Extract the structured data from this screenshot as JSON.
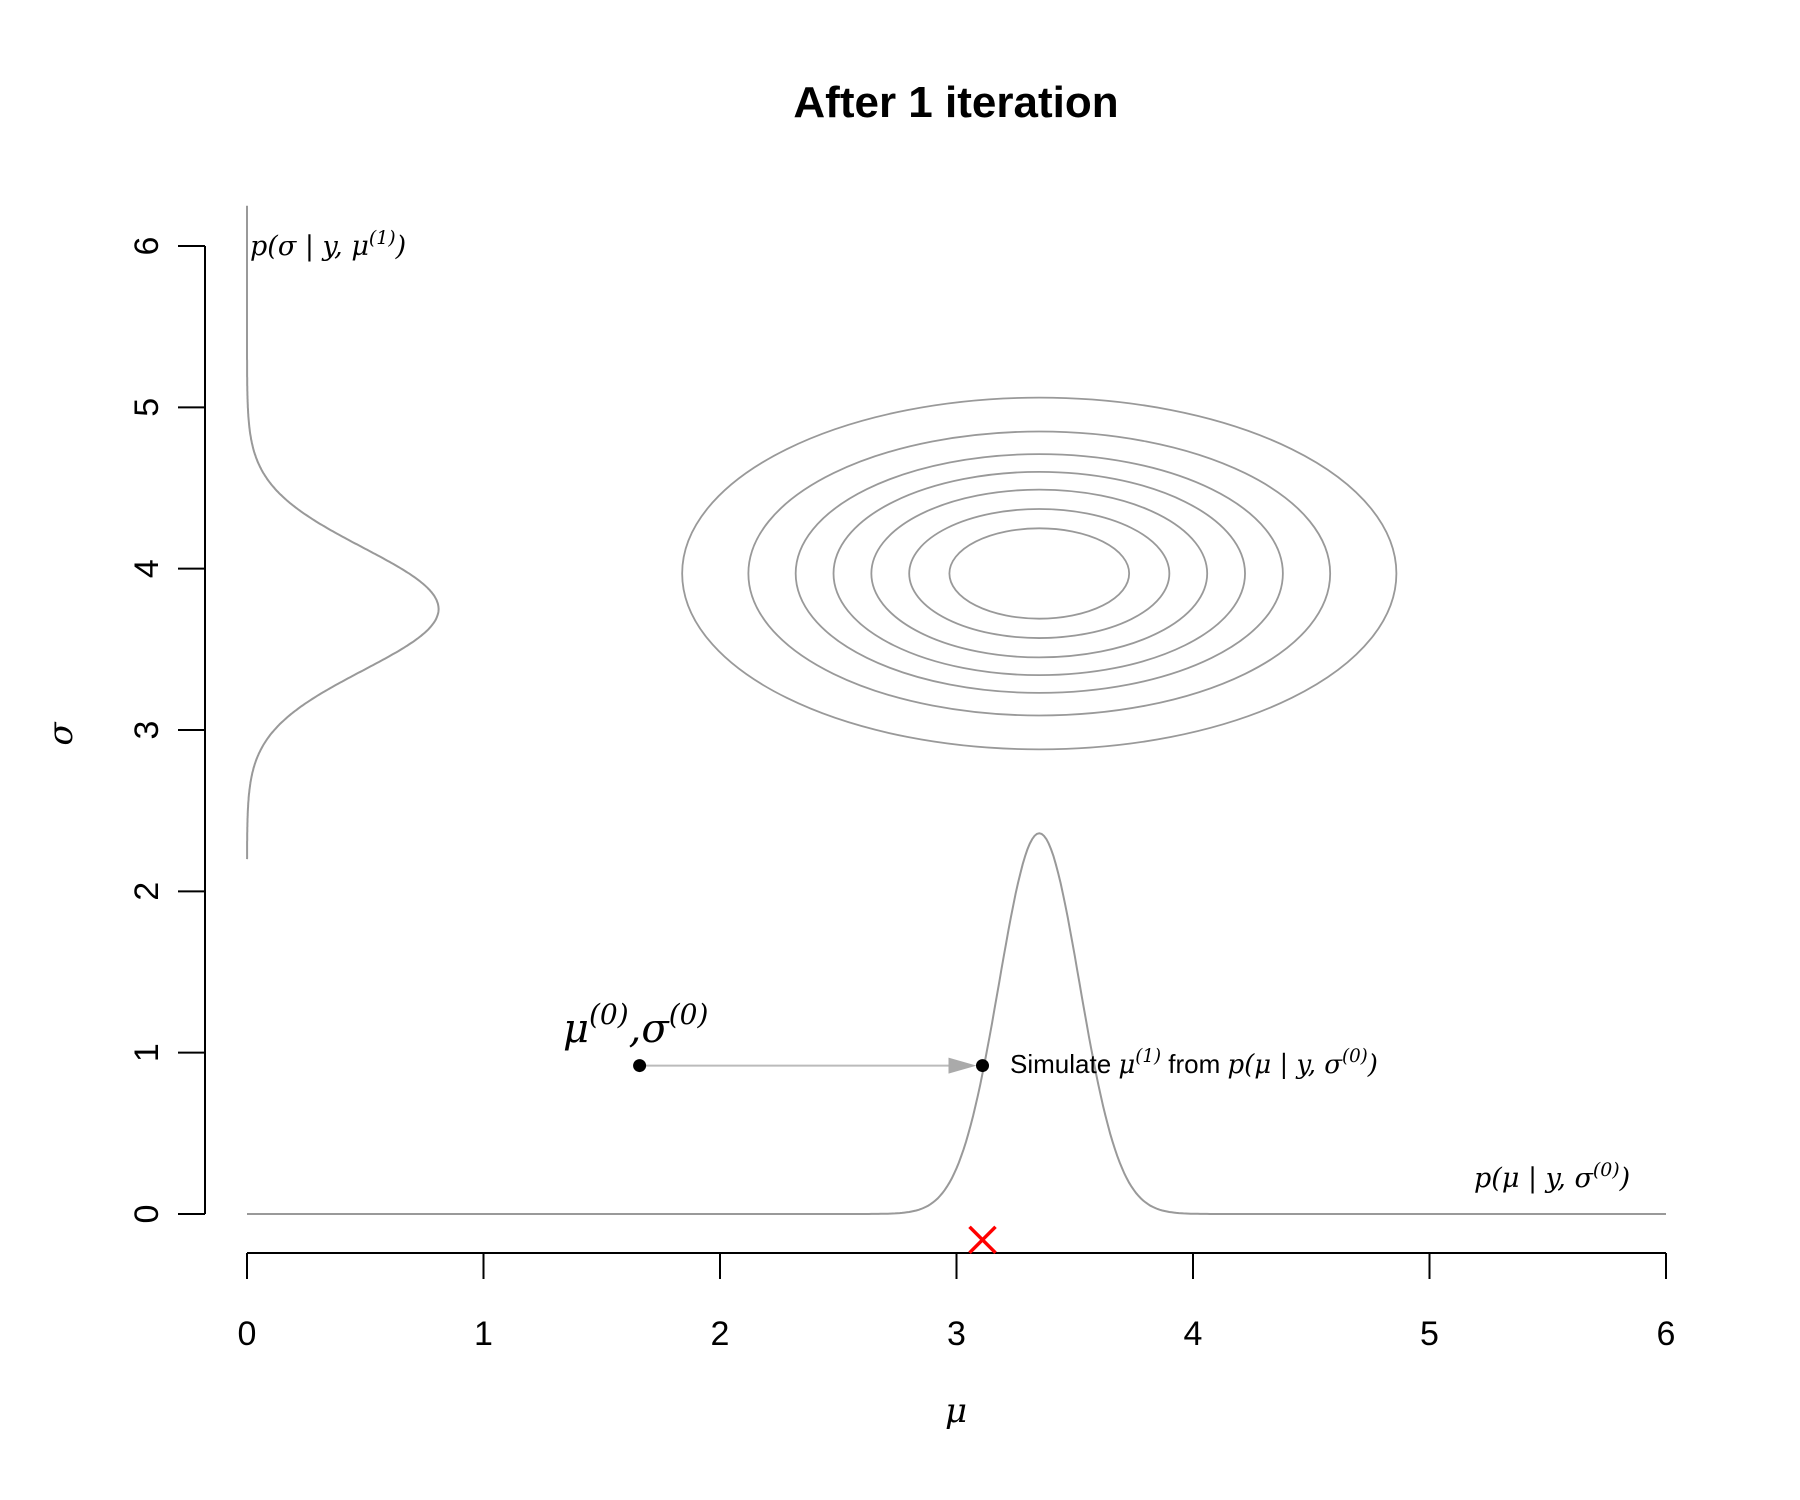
{
  "chart_data": {
    "type": "line",
    "title": "After 1 iteration",
    "xlabel": "μ",
    "ylabel": "σ",
    "xlim": [
      0,
      6
    ],
    "ylim": [
      0,
      6
    ],
    "x_ticks": [
      "0",
      "1",
      "2",
      "3",
      "4",
      "5",
      "6"
    ],
    "y_ticks": [
      "0",
      "1",
      "2",
      "3",
      "4",
      "5",
      "6"
    ],
    "joint_density_contours": {
      "center": [
        3.35,
        3.97
      ],
      "semi_axes_mu": [
        0.38,
        0.55,
        0.71,
        0.87,
        1.03,
        1.23,
        1.51
      ],
      "semi_axes_sigma": [
        0.28,
        0.4,
        0.52,
        0.63,
        0.74,
        0.88,
        1.09
      ],
      "color": "#999999"
    },
    "series": [
      {
        "name": "p(μ | y, σ^(0))",
        "role": "conditional density of mu drawn above the x axis",
        "mean": 3.35,
        "sd": 0.17,
        "peak_height": 2.36,
        "range": [
          0,
          6
        ],
        "color": "#999999"
      },
      {
        "name": "p(σ | y, μ^(1))",
        "role": "conditional density of sigma drawn to the right of the y axis",
        "mean": 3.75,
        "sd": 0.38,
        "peak_width": 0.81,
        "range": [
          2.2,
          6.25
        ],
        "color": "#999999"
      }
    ],
    "points": [
      {
        "name": "μ^(0), σ^(0)",
        "x": 1.66,
        "y": 0.92,
        "color": "#000000"
      },
      {
        "name": "μ^(1) draw",
        "x": 3.11,
        "y": 0.92,
        "color": "#000000"
      }
    ],
    "arrow": {
      "from": [
        1.66,
        0.92
      ],
      "to": [
        3.11,
        0.92
      ],
      "color": "#bbbbbb"
    },
    "rug_marker": {
      "x": 3.11,
      "y": -0.16,
      "symbol": "×",
      "color": "#ff0000"
    },
    "annotations": {
      "start_point": {
        "mu": "μ",
        "sup0": "(0)",
        "comma": ",",
        "sigma": "σ",
        "sup1": "(0)"
      },
      "simulate": {
        "prefix": "Simulate ",
        "var": "μ",
        "var_sup": "(1)",
        "mid": " from ",
        "expr": "p(μ | y, σ",
        "expr_sup": "(0)",
        "expr_end": ")"
      },
      "mu_density": {
        "expr": "p(μ | y, σ",
        "expr_sup": "(0)",
        "expr_end": ")"
      },
      "sigma_density": {
        "expr": "p(σ | y, μ",
        "expr_sup": "(1)",
        "expr_end": ")"
      }
    }
  }
}
